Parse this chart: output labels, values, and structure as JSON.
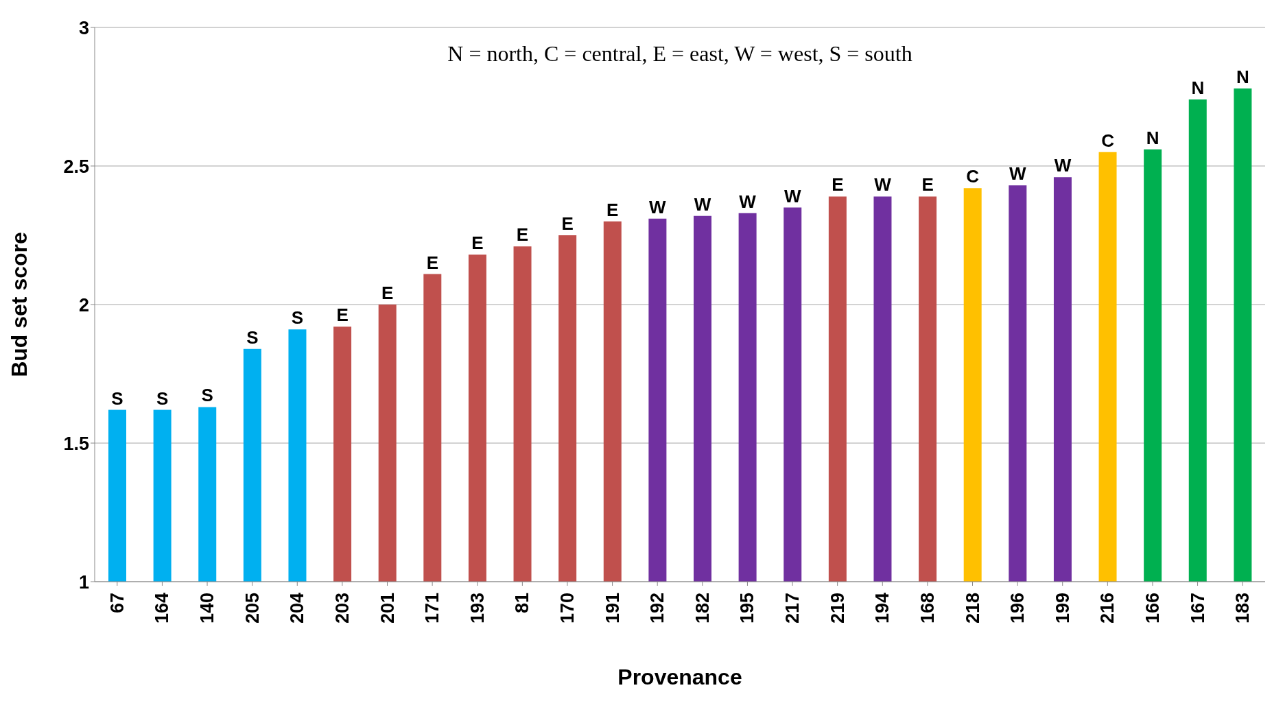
{
  "chart_data": {
    "type": "bar",
    "xlabel": "Provenance",
    "ylabel": "Bud set score",
    "annotations": [
      "N = north, C = central, E = east, W = west, S = south"
    ],
    "categories": [
      "67",
      "164",
      "140",
      "205",
      "204",
      "203",
      "201",
      "171",
      "193",
      "81",
      "170",
      "191",
      "192",
      "182",
      "195",
      "217",
      "219",
      "194",
      "168",
      "218",
      "196",
      "199",
      "216",
      "166",
      "167",
      "183"
    ],
    "values": [
      1.62,
      1.62,
      1.63,
      1.84,
      1.91,
      1.92,
      2.0,
      2.11,
      2.18,
      2.21,
      2.25,
      2.3,
      2.31,
      2.32,
      2.33,
      2.35,
      2.39,
      2.39,
      2.39,
      2.42,
      2.43,
      2.46,
      2.55,
      2.56,
      2.74,
      2.78
    ],
    "colors": [
      "#00b0f0",
      "#00b0f0",
      "#00b0f0",
      "#00b0f0",
      "#00b0f0",
      "#c0504d",
      "#c0504d",
      "#c0504d",
      "#c0504d",
      "#c0504d",
      "#c0504d",
      "#c0504d",
      "#7030a0",
      "#7030a0",
      "#7030a0",
      "#7030a0",
      "#c0504d",
      "#7030a0",
      "#c0504d",
      "#ffc000",
      "#7030a0",
      "#7030a0",
      "#ffc000",
      "#00b050",
      "#00b050",
      "#00b050"
    ],
    "value_labels": [
      "S",
      "S",
      "S",
      "S",
      "S",
      "E",
      "E",
      "E",
      "E",
      "E",
      "E",
      "E",
      "W",
      "W",
      "W",
      "W",
      "E",
      "W",
      "E",
      "C",
      "W",
      "W",
      "C",
      "N",
      "N",
      "N"
    ],
    "ylim": [
      1,
      3
    ],
    "yticks": [
      1,
      1.5,
      2,
      2.5,
      3
    ],
    "grid": "y",
    "legend": false
  }
}
